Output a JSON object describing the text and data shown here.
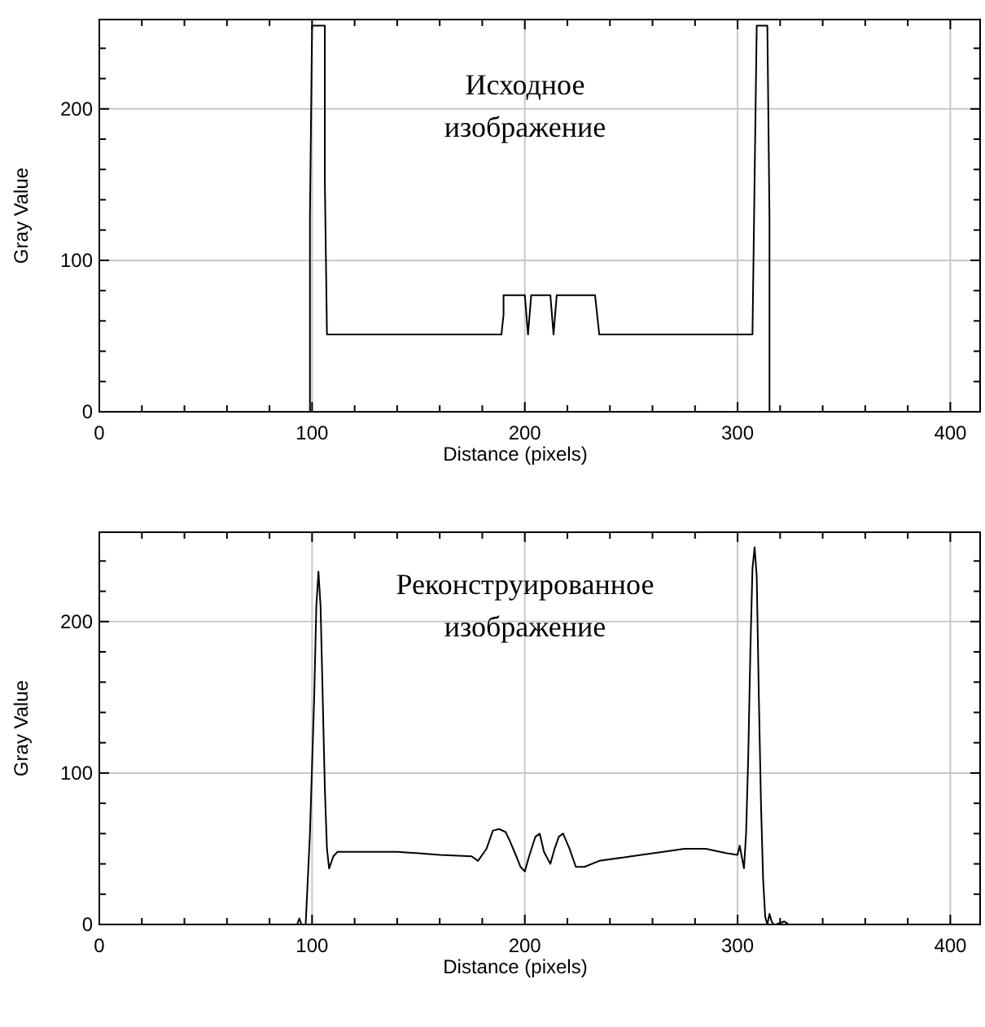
{
  "chart_data": [
    {
      "type": "line",
      "title": "Исходное\nизображение",
      "xlabel": "Distance (pixels)",
      "ylabel": "Gray Value",
      "xlim": [
        0,
        414
      ],
      "ylim": [
        0,
        259
      ],
      "grid": true,
      "marker": "none",
      "line_style": "solid",
      "xticks": [
        0,
        {
          "value": 20,
          "label": null
        },
        {
          "value": 40,
          "label": null
        },
        {
          "value": 60,
          "label": null
        },
        {
          "value": 80,
          "label": null
        },
        100,
        {
          "value": 120,
          "label": null
        },
        {
          "value": 140,
          "label": null
        },
        {
          "value": 160,
          "label": null
        },
        {
          "value": 180,
          "label": null
        },
        200,
        {
          "value": 220,
          "label": null
        },
        {
          "value": 240,
          "label": null
        },
        {
          "value": 260,
          "label": null
        },
        {
          "value": 280,
          "label": null
        },
        300,
        {
          "value": 320,
          "label": null
        },
        {
          "value": 340,
          "label": null
        },
        {
          "value": 360,
          "label": null
        },
        {
          "value": 380,
          "label": null
        },
        400
      ],
      "yticks": [
        0,
        {
          "value": 20,
          "label": null
        },
        {
          "value": 40,
          "label": null
        },
        {
          "value": 60,
          "label": null
        },
        {
          "value": 80,
          "label": null
        },
        100,
        {
          "value": 120,
          "label": null
        },
        {
          "value": 140,
          "label": null
        },
        {
          "value": 160,
          "label": null
        },
        {
          "value": 180,
          "label": null
        },
        200,
        {
          "value": 220,
          "label": null
        },
        {
          "value": 240,
          "label": null
        }
      ],
      "series": [
        {
          "color": "#000000",
          "x": [
            0,
            99,
            99,
            100,
            106,
            106,
            107,
            189,
            190,
            190,
            200,
            201.5,
            203,
            212,
            213.5,
            215,
            233,
            234,
            235,
            307,
            308,
            309,
            314,
            315,
            315,
            414
          ],
          "values": [
            0,
            0,
            128,
            255,
            255,
            153,
            51,
            51,
            64,
            77,
            77,
            51,
            77,
            77,
            51,
            77,
            77,
            64,
            51,
            51,
            153,
            255,
            255,
            128,
            0,
            0
          ]
        }
      ]
    },
    {
      "type": "line",
      "title": "Реконструированное\nизображение",
      "xlabel": "Distance (pixels)",
      "ylabel": "Gray Value",
      "xlim": [
        0,
        414
      ],
      "ylim": [
        0,
        259
      ],
      "grid": true,
      "marker": "none",
      "line_style": "solid",
      "xticks": [
        0,
        {
          "value": 20,
          "label": null
        },
        {
          "value": 40,
          "label": null
        },
        {
          "value": 60,
          "label": null
        },
        {
          "value": 80,
          "label": null
        },
        100,
        {
          "value": 120,
          "label": null
        },
        {
          "value": 140,
          "label": null
        },
        {
          "value": 160,
          "label": null
        },
        {
          "value": 180,
          "label": null
        },
        200,
        {
          "value": 220,
          "label": null
        },
        {
          "value": 240,
          "label": null
        },
        {
          "value": 260,
          "label": null
        },
        {
          "value": 280,
          "label": null
        },
        300,
        {
          "value": 320,
          "label": null
        },
        {
          "value": 340,
          "label": null
        },
        {
          "value": 360,
          "label": null
        },
        {
          "value": 380,
          "label": null
        },
        400
      ],
      "yticks": [
        0,
        {
          "value": 20,
          "label": null
        },
        {
          "value": 40,
          "label": null
        },
        {
          "value": 60,
          "label": null
        },
        {
          "value": 80,
          "label": null
        },
        100,
        {
          "value": 120,
          "label": null
        },
        {
          "value": 140,
          "label": null
        },
        {
          "value": 160,
          "label": null
        },
        {
          "value": 180,
          "label": null
        },
        200,
        {
          "value": 220,
          "label": null
        },
        {
          "value": 240,
          "label": null
        }
      ],
      "series": [
        {
          "color": "#000000",
          "x": [
            0,
            93,
            94,
            95,
            97,
            99,
            101,
            102,
            103,
            104,
            105,
            106,
            107,
            108,
            110,
            112,
            120,
            140,
            160,
            175,
            178,
            182,
            185,
            188,
            191,
            193,
            196,
            198,
            200,
            202,
            205,
            207,
            209,
            212,
            214,
            216,
            218,
            221,
            224,
            228,
            235,
            250,
            265,
            275,
            285,
            295,
            300,
            301,
            303,
            304,
            305,
            306,
            307,
            308,
            309,
            310,
            311,
            312,
            313,
            314,
            315,
            316,
            317,
            318,
            322,
            323,
            324,
            414
          ],
          "values": [
            0,
            0,
            4,
            0,
            0,
            60,
            150,
            210,
            233,
            210,
            150,
            90,
            50,
            37,
            45,
            48,
            48,
            48,
            46,
            45,
            42,
            50,
            62,
            63,
            61,
            55,
            45,
            38,
            35,
            45,
            58,
            60,
            48,
            40,
            50,
            58,
            60,
            50,
            38,
            38,
            42,
            45,
            48,
            50,
            50,
            47,
            46,
            52,
            37,
            60,
            110,
            180,
            235,
            249,
            230,
            150,
            80,
            30,
            5,
            0,
            7,
            2,
            0,
            0,
            2,
            1,
            0,
            0
          ]
        }
      ]
    }
  ]
}
